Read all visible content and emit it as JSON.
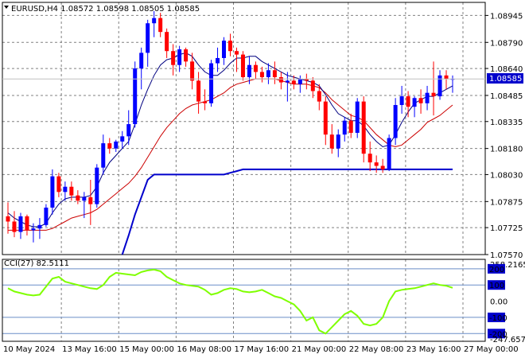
{
  "header": {
    "symbol_line": "EURUSD,H4  1.08572 1.08598 1.08505 1.08585"
  },
  "indicator": {
    "label": "CCI(27) 82.5111"
  },
  "price_badge": "1.08585",
  "colors": {
    "bull": "#0000ff",
    "bear": "#ff0000",
    "fast_ma": "#000080",
    "slow_ma": "#cc0000",
    "support": "#0000cc",
    "cci": "#7fff00",
    "badge_bg": "#0000cc"
  },
  "chart_data": [
    {
      "type": "candlestick",
      "title": "EURUSD,H4",
      "y_ticks": [
        "1.08945",
        "1.08790",
        "1.08640",
        "1.08485",
        "1.08335",
        "1.08180",
        "1.08030",
        "1.07875",
        "1.07725",
        "1.07570"
      ],
      "ylim": [
        1.0757,
        1.0902
      ],
      "x_ticks": [
        "10 May 2024",
        "13 May 16:00",
        "15 May 00:00",
        "16 May 08:00",
        "17 May 16:00",
        "21 May 00:00",
        "22 May 08:00",
        "23 May 16:00",
        "27 May 00:00"
      ],
      "grid": true,
      "candles": [
        [
          1.0779,
          1.0787,
          1.0769,
          1.0776
        ],
        [
          1.0776,
          1.0782,
          1.0767,
          1.077
        ],
        [
          1.077,
          1.0781,
          1.0766,
          1.0779
        ],
        [
          1.0779,
          1.078,
          1.0768,
          1.0771
        ],
        [
          1.0771,
          1.0775,
          1.0764,
          1.0772
        ],
        [
          1.0772,
          1.0778,
          1.0766,
          1.0774
        ],
        [
          1.0774,
          1.0786,
          1.0773,
          1.0784
        ],
        [
          1.0784,
          1.0806,
          1.078,
          1.0802
        ],
        [
          1.0802,
          1.0804,
          1.079,
          1.0793
        ],
        [
          1.0793,
          1.0799,
          1.0788,
          1.0796
        ],
        [
          1.0796,
          1.0799,
          1.0788,
          1.0791
        ],
        [
          1.0791,
          1.0794,
          1.0786,
          1.0788
        ],
        [
          1.0788,
          1.0793,
          1.0778,
          1.079
        ],
        [
          1.079,
          1.08,
          1.0774,
          1.0786
        ],
        [
          1.0786,
          1.0809,
          1.0784,
          1.0807
        ],
        [
          1.0807,
          1.0826,
          1.0803,
          1.0821
        ],
        [
          1.0821,
          1.0824,
          1.0815,
          1.0818
        ],
        [
          1.0818,
          1.0823,
          1.0816,
          1.0822
        ],
        [
          1.0822,
          1.0828,
          1.0818,
          1.0825
        ],
        [
          1.0825,
          1.084,
          1.082,
          1.0832
        ],
        [
          1.0832,
          1.0868,
          1.083,
          1.0864
        ],
        [
          1.0864,
          1.0876,
          1.0852,
          1.0873
        ],
        [
          1.0873,
          1.0892,
          1.0865,
          1.089
        ],
        [
          1.089,
          1.0897,
          1.0882,
          1.0893
        ],
        [
          1.0893,
          1.0896,
          1.0882,
          1.0885
        ],
        [
          1.0885,
          1.0887,
          1.087,
          1.0874
        ],
        [
          1.0874,
          1.0878,
          1.086,
          1.0866
        ],
        [
          1.0866,
          1.0877,
          1.0862,
          1.0875
        ],
        [
          1.0875,
          1.0876,
          1.0865,
          1.0868
        ],
        [
          1.0868,
          1.0873,
          1.0852,
          1.0857
        ],
        [
          1.0857,
          1.0862,
          1.0838,
          1.0845
        ],
        [
          1.0845,
          1.0852,
          1.084,
          1.0844
        ],
        [
          1.0844,
          1.0869,
          1.0842,
          1.0867
        ],
        [
          1.0867,
          1.0876,
          1.0862,
          1.087
        ],
        [
          1.087,
          1.0882,
          1.0866,
          1.088
        ],
        [
          1.088,
          1.0884,
          1.0871,
          1.0874
        ],
        [
          1.0874,
          1.0876,
          1.0862,
          1.0872
        ],
        [
          1.0872,
          1.0874,
          1.0857,
          1.0859
        ],
        [
          1.0859,
          1.0871,
          1.0855,
          1.0866
        ],
        [
          1.0866,
          1.0868,
          1.0858,
          1.0862
        ],
        [
          1.0862,
          1.0865,
          1.0856,
          1.0859
        ],
        [
          1.0859,
          1.0867,
          1.0855,
          1.0863
        ],
        [
          1.0863,
          1.0868,
          1.0855,
          1.0859
        ],
        [
          1.0859,
          1.0862,
          1.0852,
          1.0856
        ],
        [
          1.0856,
          1.0862,
          1.0845,
          1.0857
        ],
        [
          1.0857,
          1.086,
          1.0852,
          1.0855
        ],
        [
          1.0855,
          1.086,
          1.085,
          1.0858
        ],
        [
          1.0858,
          1.0861,
          1.0852,
          1.0857
        ],
        [
          1.0857,
          1.0859,
          1.0847,
          1.0851
        ],
        [
          1.0851,
          1.0855,
          1.084,
          1.0845
        ],
        [
          1.0845,
          1.0848,
          1.082,
          1.0826
        ],
        [
          1.0826,
          1.0832,
          1.0815,
          1.0818
        ],
        [
          1.0818,
          1.0829,
          1.0813,
          1.0826
        ],
        [
          1.0826,
          1.0836,
          1.0822,
          1.0834
        ],
        [
          1.0834,
          1.0838,
          1.0824,
          1.0827
        ],
        [
          1.0827,
          1.0847,
          1.0824,
          1.0845
        ],
        [
          1.0845,
          1.0848,
          1.081,
          1.0815
        ],
        [
          1.0815,
          1.0822,
          1.0805,
          1.081
        ],
        [
          1.081,
          1.0814,
          1.0804,
          1.0808
        ],
        [
          1.0808,
          1.0812,
          1.0804,
          1.0806
        ],
        [
          1.0806,
          1.0826,
          1.0805,
          1.0824
        ],
        [
          1.0824,
          1.0847,
          1.082,
          1.0843
        ],
        [
          1.0843,
          1.0854,
          1.0838,
          1.0848
        ],
        [
          1.0848,
          1.0851,
          1.0836,
          1.0842
        ],
        [
          1.0842,
          1.0848,
          1.0836,
          1.0847
        ],
        [
          1.0847,
          1.0852,
          1.0838,
          1.0844
        ],
        [
          1.0844,
          1.0854,
          1.084,
          1.085
        ],
        [
          1.085,
          1.0868,
          1.0837,
          1.0848
        ],
        [
          1.0848,
          1.0863,
          1.0846,
          1.086
        ],
        [
          1.086,
          1.0863,
          1.0852,
          1.0858
        ],
        [
          1.0858,
          1.086,
          1.085,
          1.0858
        ]
      ],
      "fast_ma": [
        1.0781,
        1.0778,
        1.0776,
        1.0774,
        1.0773,
        1.0773,
        1.0775,
        1.0781,
        1.0786,
        1.0789,
        1.079,
        1.079,
        1.079,
        1.0791,
        1.0796,
        1.0804,
        1.081,
        1.0814,
        1.0818,
        1.0822,
        1.0832,
        1.0843,
        1.0852,
        1.086,
        1.0866,
        1.0869,
        1.087,
        1.0872,
        1.0873,
        1.0871,
        1.0866,
        1.0862,
        1.086,
        1.086,
        1.0863,
        1.0867,
        1.087,
        1.087,
        1.0871,
        1.0871,
        1.0868,
        1.0866,
        1.0864,
        1.0862,
        1.086,
        1.0859,
        1.0858,
        1.0857,
        1.0856,
        1.0854,
        1.0849,
        1.0843,
        1.0838,
        1.0836,
        1.0834,
        1.0834,
        1.0831,
        1.0826,
        1.0822,
        1.0819,
        1.082,
        1.0826,
        1.0833,
        1.0839,
        1.0844,
        1.0846,
        1.0848,
        1.0848,
        1.085,
        1.0852,
        1.0854
      ],
      "slow_ma": [
        1.0771,
        1.0771,
        1.0771,
        1.0771,
        1.0771,
        1.0771,
        1.0771,
        1.0772,
        1.0774,
        1.0776,
        1.0778,
        1.0779,
        1.078,
        1.0781,
        1.0783,
        1.0786,
        1.0789,
        1.0792,
        1.0795,
        1.0798,
        1.0802,
        1.0807,
        1.0813,
        1.0819,
        1.0825,
        1.083,
        1.0834,
        1.0838,
        1.0841,
        1.0843,
        1.0844,
        1.0845,
        1.0846,
        1.0848,
        1.085,
        1.0853,
        1.0855,
        1.0856,
        1.0857,
        1.0858,
        1.0858,
        1.0858,
        1.0858,
        1.0857,
        1.0856,
        1.0855,
        1.0855,
        1.0855,
        1.0854,
        1.0853,
        1.085,
        1.0846,
        1.0843,
        1.084,
        1.0837,
        1.0836,
        1.0834,
        1.083,
        1.0826,
        1.0823,
        1.082,
        1.0819,
        1.082,
        1.0823,
        1.0826,
        1.0829,
        1.0833,
        1.0835,
        1.0837,
        1.084,
        1.0843
      ],
      "support_line": [
        null,
        null,
        null,
        null,
        null,
        null,
        null,
        null,
        null,
        null,
        null,
        null,
        null,
        null,
        null,
        null,
        null,
        null,
        1.0757,
        1.0768,
        1.078,
        1.079,
        1.08,
        1.0803,
        1.0803,
        1.0803,
        1.0803,
        1.0803,
        1.0803,
        1.0803,
        1.0803,
        1.0803,
        1.0803,
        1.0803,
        1.0803,
        1.0804,
        1.0805,
        1.0806,
        1.0806,
        1.0806,
        1.0806,
        1.0806,
        1.0806,
        1.0806,
        1.0806,
        1.0806,
        1.0806,
        1.0806,
        1.0806,
        1.0806,
        1.0806,
        1.0806,
        1.0806,
        1.0806,
        1.0806,
        1.0806,
        1.0806,
        1.0806,
        1.0806,
        1.0806,
        1.0806,
        1.0806,
        1.0806,
        1.0806,
        1.0806,
        1.0806,
        1.0806,
        1.0806,
        1.0806,
        1.0806,
        1.0806
      ]
    },
    {
      "type": "line",
      "title": "CCI(27) 82.5111",
      "y_ticks": [
        "258.2165",
        "200",
        "100",
        "0.00",
        "-100",
        "-200",
        "-247.6574"
      ],
      "ylim": [
        -247.6574,
        258.2165
      ],
      "levels": [
        200,
        100,
        -100,
        -200
      ],
      "values": [
        80,
        60,
        50,
        40,
        35,
        40,
        90,
        140,
        150,
        120,
        110,
        100,
        90,
        80,
        75,
        100,
        150,
        175,
        170,
        165,
        160,
        180,
        190,
        195,
        185,
        150,
        130,
        110,
        100,
        95,
        90,
        70,
        40,
        50,
        70,
        80,
        75,
        60,
        55,
        60,
        70,
        50,
        30,
        20,
        0,
        -20,
        -60,
        -120,
        -100,
        -180,
        -200,
        -160,
        -120,
        -80,
        -60,
        -90,
        -140,
        -150,
        -140,
        -100,
        0,
        60,
        70,
        75,
        80,
        90,
        100,
        110,
        100,
        95,
        82.5
      ]
    }
  ]
}
